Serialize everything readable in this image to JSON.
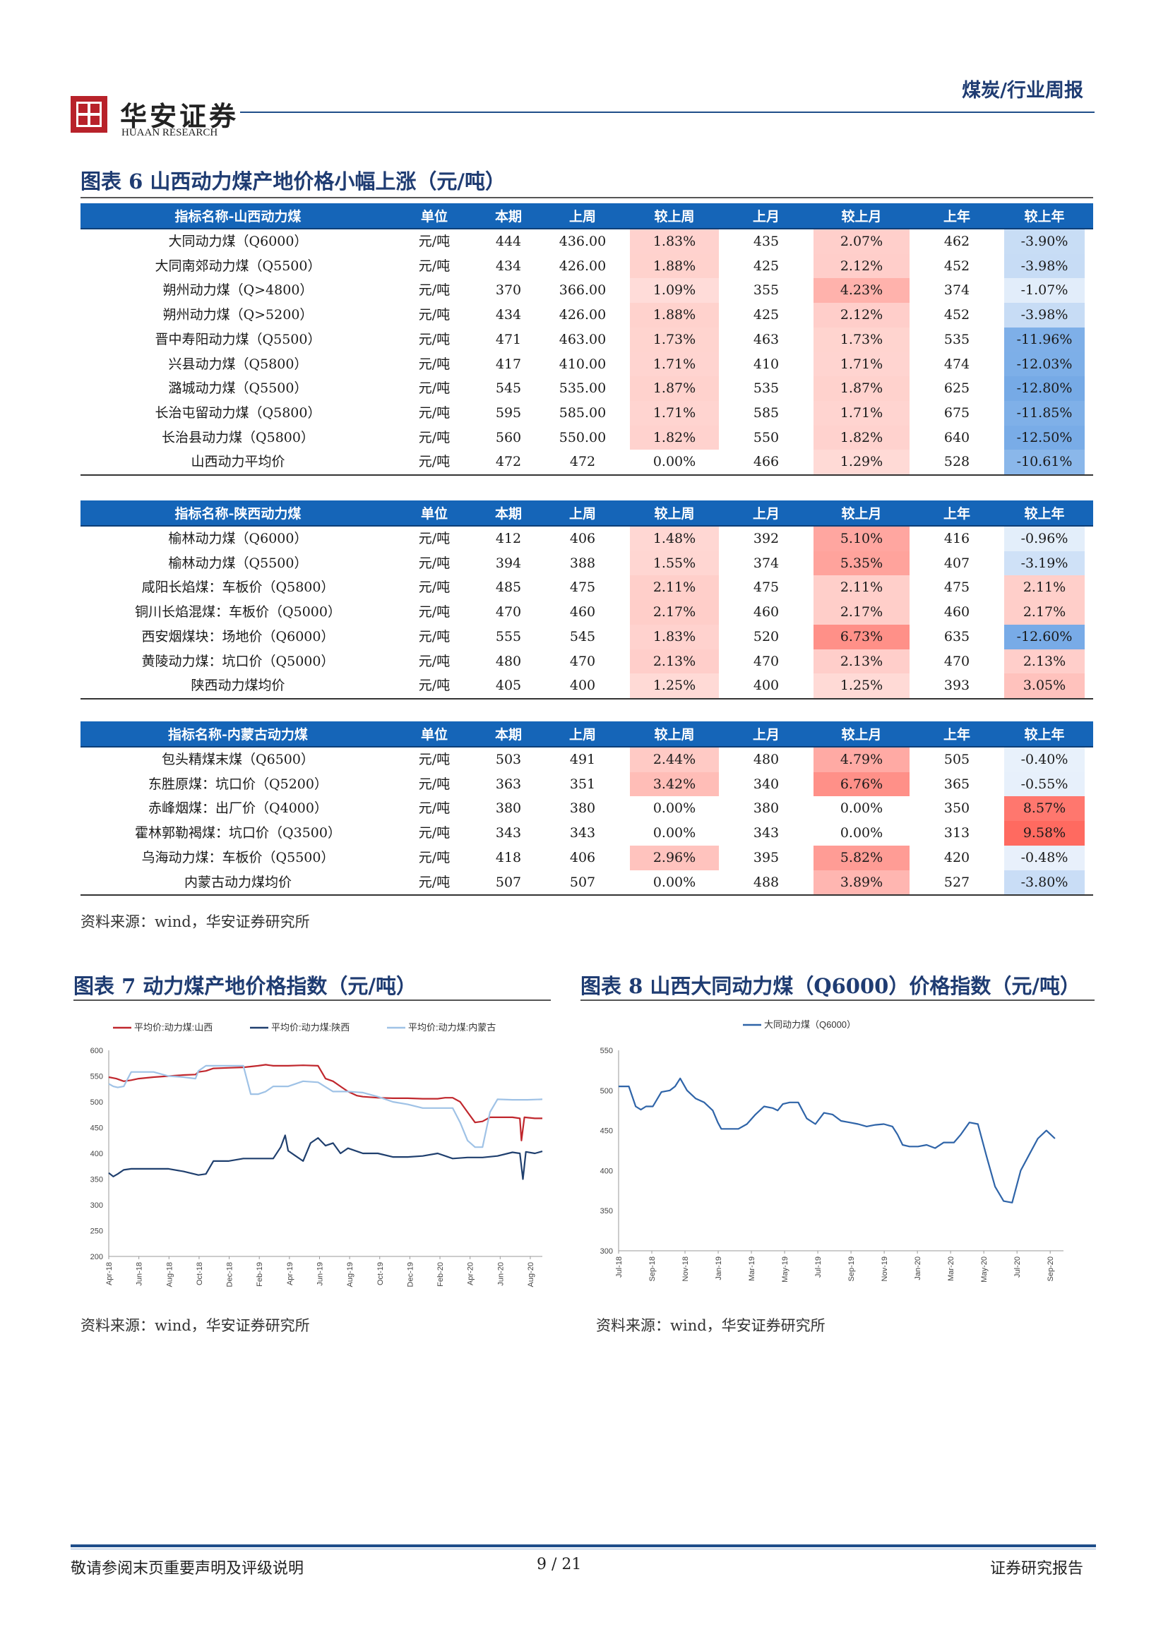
{
  "header": {
    "logo_cn": "华安证券",
    "logo_en": "HUAAN RESEARCH",
    "report_type": "煤炭/行业周报"
  },
  "figure6": {
    "title": "图表 6 山西动力煤产地价格小幅上涨（元/吨）",
    "columns": [
      "单位",
      "本期",
      "上周",
      "较上周",
      "上月",
      "较上月",
      "上年",
      "较上年"
    ],
    "sections": [
      {
        "header": "指标名称-山西动力煤",
        "rows": [
          [
            "大同动力煤（Q6000）",
            "元/吨",
            "444",
            "436.00",
            "1.83%",
            "435",
            "2.07%",
            "462",
            "-3.90%"
          ],
          [
            "大同南郊动力煤（Q5500）",
            "元/吨",
            "434",
            "426.00",
            "1.88%",
            "425",
            "2.12%",
            "452",
            "-3.98%"
          ],
          [
            "朔州动力煤（Q>4800）",
            "元/吨",
            "370",
            "366.00",
            "1.09%",
            "355",
            "4.23%",
            "374",
            "-1.07%"
          ],
          [
            "朔州动力煤（Q>5200）",
            "元/吨",
            "434",
            "426.00",
            "1.88%",
            "425",
            "2.12%",
            "452",
            "-3.98%"
          ],
          [
            "晋中寿阳动力煤（Q5500）",
            "元/吨",
            "471",
            "463.00",
            "1.73%",
            "463",
            "1.73%",
            "535",
            "-11.96%"
          ],
          [
            "兴县动力煤（Q5800）",
            "元/吨",
            "417",
            "410.00",
            "1.71%",
            "410",
            "1.71%",
            "474",
            "-12.03%"
          ],
          [
            "潞城动力煤（Q5500）",
            "元/吨",
            "545",
            "535.00",
            "1.87%",
            "535",
            "1.87%",
            "625",
            "-12.80%"
          ],
          [
            "长治屯留动力煤（Q5800）",
            "元/吨",
            "595",
            "585.00",
            "1.71%",
            "585",
            "1.71%",
            "675",
            "-11.85%"
          ],
          [
            "长治县动力煤（Q5800）",
            "元/吨",
            "560",
            "550.00",
            "1.82%",
            "550",
            "1.82%",
            "640",
            "-12.50%"
          ],
          [
            "山西动力平均价",
            "元/吨",
            "472",
            "472",
            "0.00%",
            "466",
            "1.29%",
            "528",
            "-10.61%"
          ]
        ]
      },
      {
        "header": "指标名称-陕西动力煤",
        "rows": [
          [
            "榆林动力煤（Q6000）",
            "元/吨",
            "412",
            "406",
            "1.48%",
            "392",
            "5.10%",
            "416",
            "-0.96%"
          ],
          [
            "榆林动力煤（Q5500）",
            "元/吨",
            "394",
            "388",
            "1.55%",
            "374",
            "5.35%",
            "407",
            "-3.19%"
          ],
          [
            "咸阳长焰煤：车板价（Q5800）",
            "元/吨",
            "485",
            "475",
            "2.11%",
            "475",
            "2.11%",
            "475",
            "2.11%"
          ],
          [
            "铜川长焰混煤：车板价（Q5000）",
            "元/吨",
            "470",
            "460",
            "2.17%",
            "460",
            "2.17%",
            "460",
            "2.17%"
          ],
          [
            "西安烟煤块：场地价（Q6000）",
            "元/吨",
            "555",
            "545",
            "1.83%",
            "520",
            "6.73%",
            "635",
            "-12.60%"
          ],
          [
            "黄陵动力煤：坑口价（Q5000）",
            "元/吨",
            "480",
            "470",
            "2.13%",
            "470",
            "2.13%",
            "470",
            "2.13%"
          ],
          [
            "陕西动力煤均价",
            "元/吨",
            "405",
            "400",
            "1.25%",
            "400",
            "1.25%",
            "393",
            "3.05%"
          ]
        ]
      },
      {
        "header": "指标名称-内蒙古动力煤",
        "rows": [
          [
            "包头精煤末煤（Q6500）",
            "元/吨",
            "503",
            "491",
            "2.44%",
            "480",
            "4.79%",
            "505",
            "-0.40%"
          ],
          [
            "东胜原煤：坑口价（Q5200）",
            "元/吨",
            "363",
            "351",
            "3.42%",
            "340",
            "6.76%",
            "365",
            "-0.55%"
          ],
          [
            "赤峰烟煤：出厂价（Q4000）",
            "元/吨",
            "380",
            "380",
            "0.00%",
            "380",
            "0.00%",
            "350",
            "8.57%"
          ],
          [
            "霍林郭勒褐煤：坑口价（Q3500）",
            "元/吨",
            "343",
            "343",
            "0.00%",
            "343",
            "0.00%",
            "313",
            "9.58%"
          ],
          [
            "乌海动力煤：车板价（Q5500）",
            "元/吨",
            "418",
            "406",
            "2.96%",
            "395",
            "5.82%",
            "420",
            "-0.48%"
          ],
          [
            "内蒙古动力煤均价",
            "元/吨",
            "507",
            "507",
            "0.00%",
            "488",
            "3.89%",
            "527",
            "-3.80%"
          ]
        ]
      }
    ],
    "source": "资料来源：wind，华安证券研究所"
  },
  "figure7": {
    "title": "图表 7 动力煤产地价格指数（元/吨）",
    "source": "资料来源：wind，华安证券研究所"
  },
  "figure8": {
    "title": "图表 8 山西大同动力煤（Q6000）价格指数（元/吨）",
    "source": "资料来源：wind，华安证券研究所"
  },
  "chart_data": [
    {
      "type": "line",
      "title": "",
      "ylim": [
        200,
        600
      ],
      "yticks": [
        200,
        250,
        300,
        350,
        400,
        450,
        500,
        550,
        600
      ],
      "xticks": [
        "Apr-18",
        "Jun-18",
        "Aug-18",
        "Oct-18",
        "Dec-18",
        "Feb-19",
        "Apr-19",
        "Jun-19",
        "Aug-19",
        "Oct-19",
        "Dec-19",
        "Feb-20",
        "Apr-20",
        "Jun-20",
        "Aug-20"
      ],
      "xlim": [
        0,
        29
      ],
      "legend": "top",
      "colors": {
        "shanxi": "#c0272d",
        "shaanxi": "#1f3f6e",
        "neimeng": "#9fc2e6"
      },
      "series": [
        {
          "name": "平均价:动力煤:山西",
          "x": [
            0,
            0.5,
            1,
            1.5,
            2,
            3,
            4,
            5,
            5.8,
            6,
            6.5,
            7,
            8,
            9,
            10,
            10.5,
            11,
            12,
            13,
            14,
            14.5,
            15,
            15.6,
            16,
            16.6,
            17,
            18,
            19,
            20,
            21,
            22,
            22.5,
            23,
            23.5,
            24,
            24.5,
            25,
            25.5,
            26,
            27,
            27.5,
            27.6,
            27.8,
            28.5,
            29
          ],
          "y": [
            548,
            545,
            540,
            542,
            545,
            548,
            550,
            552,
            553,
            558,
            560,
            565,
            566,
            567,
            570,
            572,
            570,
            570,
            571,
            570,
            545,
            540,
            528,
            520,
            512,
            510,
            508,
            507,
            507,
            506,
            506,
            508,
            508,
            500,
            480,
            460,
            462,
            470,
            470,
            470,
            468,
            425,
            470,
            468,
            468
          ]
        },
        {
          "name": "平均价:动力煤:陕西",
          "x": [
            0,
            0.3,
            0.6,
            1,
            1.5,
            2,
            3,
            4,
            5,
            6,
            6.5,
            7,
            8,
            9,
            10,
            11,
            11.5,
            11.8,
            12,
            12.5,
            13,
            13.5,
            14,
            14.5,
            15,
            15.5,
            16,
            17,
            18,
            19,
            20,
            21,
            22,
            23,
            24,
            25,
            26,
            27,
            27.5,
            27.7,
            27.9,
            28.5,
            29
          ],
          "y": [
            362,
            355,
            360,
            368,
            370,
            370,
            370,
            370,
            365,
            358,
            360,
            385,
            385,
            390,
            390,
            390,
            412,
            435,
            405,
            395,
            385,
            420,
            430,
            415,
            420,
            400,
            410,
            400,
            400,
            393,
            393,
            395,
            400,
            390,
            392,
            392,
            395,
            402,
            400,
            350,
            403,
            400,
            404
          ]
        },
        {
          "name": "平均价:动力煤:内蒙古",
          "x": [
            0,
            0.3,
            0.6,
            1,
            1.5,
            2,
            3,
            4,
            5,
            5.8,
            6,
            6.5,
            7,
            8,
            9,
            9.5,
            10,
            10.5,
            11,
            12,
            13,
            14,
            15,
            16,
            17,
            18,
            19,
            20,
            21,
            22,
            23,
            23.5,
            24,
            24.5,
            25,
            25.5,
            26,
            27,
            28,
            29
          ],
          "y": [
            535,
            530,
            528,
            530,
            558,
            558,
            558,
            550,
            548,
            545,
            560,
            570,
            570,
            570,
            570,
            515,
            515,
            520,
            530,
            530,
            540,
            538,
            520,
            520,
            518,
            510,
            500,
            495,
            488,
            488,
            488,
            460,
            425,
            412,
            412,
            480,
            505,
            504,
            504,
            505
          ]
        }
      ]
    },
    {
      "type": "line",
      "title": "",
      "ylim": [
        300,
        550
      ],
      "yticks": [
        300,
        350,
        400,
        450,
        500,
        550
      ],
      "xticks": [
        "Jul-18",
        "Sep-18",
        "Nov-18",
        "Jan-19",
        "Mar-19",
        "May-19",
        "Jul-19",
        "Sep-19",
        "Nov-19",
        "Jan-20",
        "Mar-20",
        "May-20",
        "Jul-20",
        "Sep-20"
      ],
      "xlim": [
        0,
        26
      ],
      "legend": "top",
      "colors": {
        "datong": "#2f64a8"
      },
      "series": [
        {
          "name": "大同动力煤（Q6000）",
          "x": [
            0,
            0.6,
            1,
            1.3,
            1.6,
            2,
            2.5,
            3,
            3.3,
            3.6,
            4,
            4.5,
            5,
            5.5,
            5.8,
            6,
            6.5,
            7,
            7.5,
            8,
            8.5,
            9,
            9.3,
            9.6,
            10,
            10.5,
            11,
            11.5,
            12,
            12.5,
            13,
            13.5,
            14,
            14.5,
            15,
            15.5,
            16,
            16.3,
            16.6,
            17,
            17.5,
            18,
            18.5,
            19,
            19.3,
            19.6,
            20,
            20.5,
            21,
            21.5,
            22,
            22.5,
            23,
            23.5,
            24,
            24.5,
            25,
            25.5
          ],
          "y": [
            505,
            505,
            480,
            476,
            480,
            480,
            498,
            500,
            505,
            515,
            500,
            490,
            485,
            475,
            460,
            452,
            452,
            452,
            458,
            470,
            480,
            478,
            475,
            483,
            485,
            485,
            465,
            458,
            472,
            470,
            462,
            460,
            458,
            455,
            457,
            458,
            455,
            445,
            432,
            430,
            430,
            432,
            428,
            435,
            435,
            435,
            445,
            460,
            458,
            418,
            380,
            362,
            360,
            400,
            420,
            440,
            450,
            440
          ]
        }
      ]
    }
  ],
  "footer": {
    "disclaimer": "敬请参阅末页重要声明及评级说明",
    "page": "9 / 21",
    "label": "证券研究报告"
  }
}
